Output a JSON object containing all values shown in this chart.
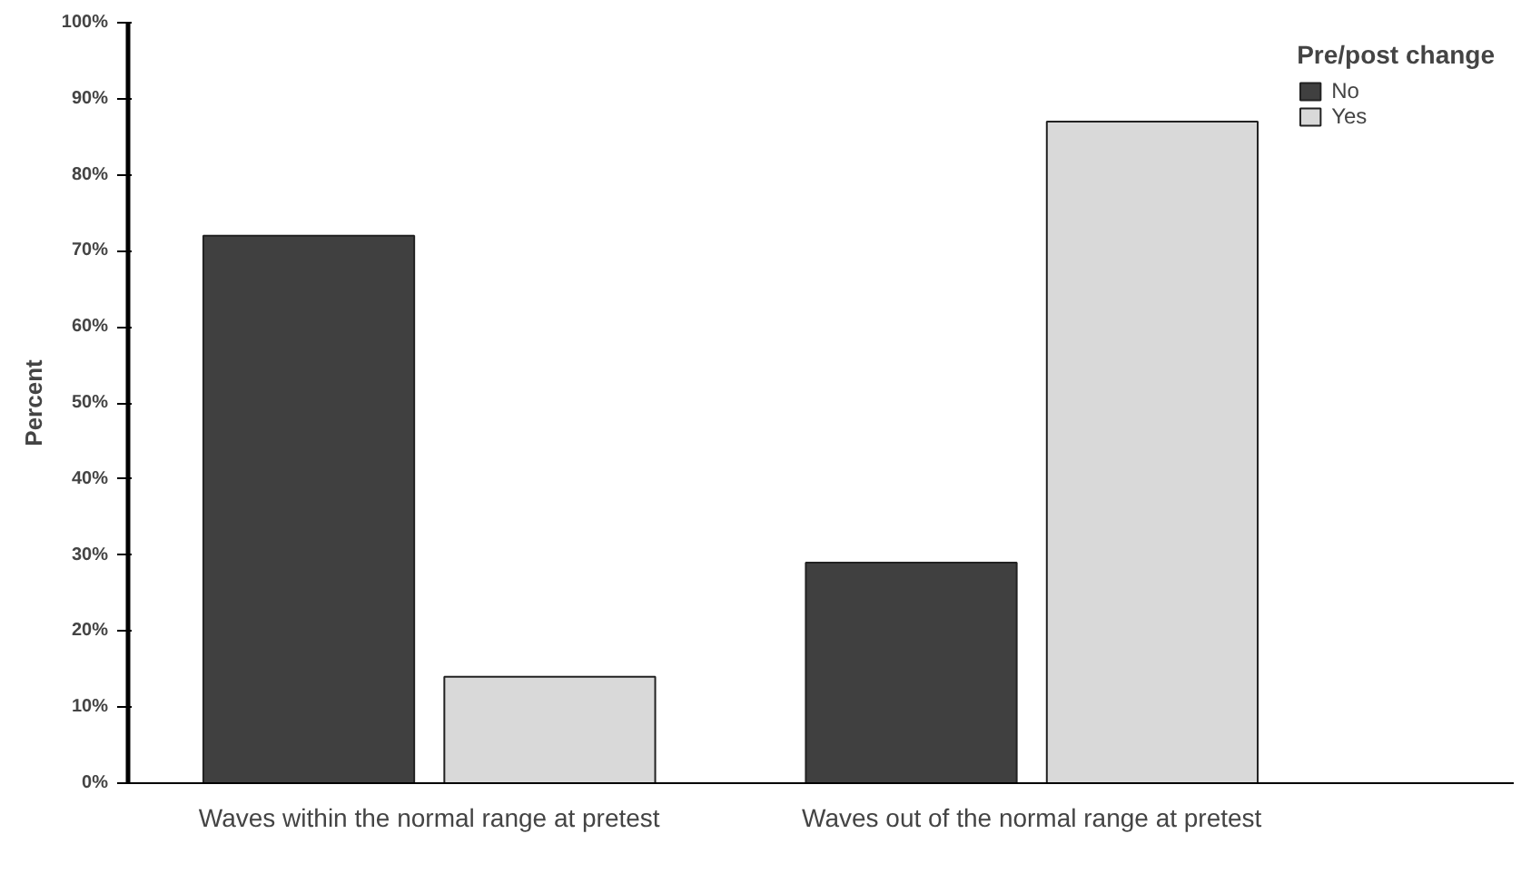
{
  "chart_data": {
    "type": "bar",
    "ylabel": "Percent",
    "legend_title": "Pre/post change",
    "categories": [
      "Waves within the normal range at pretest",
      "Waves out of the normal range at pretest"
    ],
    "series": [
      {
        "name": "No",
        "color": "#404040",
        "values": [
          72,
          29
        ]
      },
      {
        "name": "Yes",
        "color": "#d9d9d9",
        "values": [
          14,
          87
        ]
      }
    ],
    "ylim": [
      0,
      100
    ],
    "yticks": [
      {
        "value": 0,
        "label": "0%"
      },
      {
        "value": 10,
        "label": "10%"
      },
      {
        "value": 20,
        "label": "20%"
      },
      {
        "value": 30,
        "label": "30%"
      },
      {
        "value": 40,
        "label": "40%"
      },
      {
        "value": 50,
        "label": "50%"
      },
      {
        "value": 60,
        "label": "60%"
      },
      {
        "value": 70,
        "label": "70%"
      },
      {
        "value": 80,
        "label": "80%"
      },
      {
        "value": 90,
        "label": "90%"
      },
      {
        "value": 100,
        "label": "100%"
      }
    ],
    "grid": false,
    "legend": "top right"
  }
}
